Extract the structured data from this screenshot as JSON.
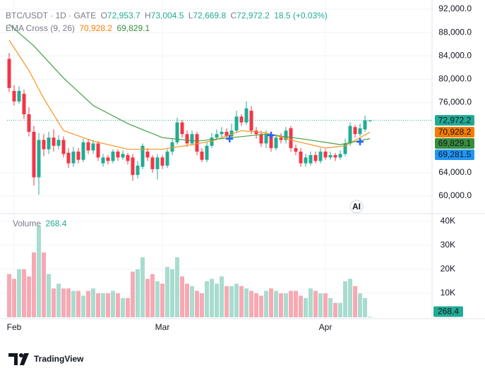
{
  "chart_data": {
    "type": "candlestick",
    "header": {
      "symbol": "BTC/USDT · 1D · GATE",
      "ohlc": [
        {
          "key": "O",
          "value": "72,953.7"
        },
        {
          "key": "H",
          "value": "73,004.5"
        },
        {
          "key": "L",
          "value": "72,669.8"
        },
        {
          "key": "C",
          "value": "72,972.2"
        }
      ],
      "change": "18.5 (+0.03%)"
    },
    "up_color": "#22ab94",
    "down_color": "#f23645",
    "open": [
      83500,
      78000,
      76200,
      77500,
      74000,
      71000,
      63200,
      69600,
      68000,
      70000,
      68600,
      69600,
      67400,
      65600,
      67600,
      66200,
      69200,
      67800,
      69000,
      65600,
      66600,
      66000,
      67600,
      66600,
      67000,
      66600,
      63600,
      65000,
      67600,
      66600,
      64600,
      66600,
      65200,
      67600,
      69200,
      72600,
      70600,
      69000,
      70600,
      67600,
      66200,
      68600,
      70000,
      70600,
      71000,
      70200,
      71200,
      73600,
      72600,
      74600,
      71200,
      70600,
      69000,
      70600,
      68200,
      70000,
      69600,
      71600,
      68200,
      67600,
      65600,
      65600,
      67000,
      66000,
      67600,
      66600,
      67000,
      66600,
      67200,
      69000,
      71800,
      70600,
      71400,
      72953.7
    ],
    "high": [
      84500,
      79000,
      78800,
      78200,
      75200,
      72000,
      70800,
      70600,
      71000,
      71400,
      70400,
      70200,
      68200,
      68400,
      68200,
      69800,
      69800,
      69600,
      69400,
      67200,
      67000,
      68000,
      68000,
      67800,
      67400,
      67200,
      66000,
      69000,
      68200,
      67000,
      67200,
      67000,
      68000,
      69800,
      73400,
      73000,
      71200,
      71200,
      71000,
      68200,
      69200,
      70800,
      71400,
      71800,
      71600,
      72400,
      74600,
      74000,
      76200,
      75400,
      71800,
      71200,
      71200,
      71000,
      70600,
      70800,
      71800,
      72000,
      68800,
      68200,
      67200,
      67600,
      67600,
      68200,
      68000,
      67600,
      67400,
      67800,
      69800,
      72600,
      72200,
      72400,
      73800,
      73004.5
    ],
    "low": [
      77800,
      75500,
      75800,
      73200,
      70200,
      61800,
      60200,
      66800,
      67200,
      67600,
      68000,
      66600,
      64800,
      65000,
      65600,
      65800,
      67200,
      67200,
      66000,
      65000,
      65400,
      65600,
      66000,
      66200,
      65400,
      62600,
      63000,
      64600,
      66000,
      64000,
      62800,
      64600,
      64800,
      67000,
      68800,
      70000,
      68400,
      68600,
      67000,
      65800,
      65800,
      68200,
      69600,
      70000,
      69600,
      69800,
      70800,
      72000,
      72200,
      70600,
      69800,
      68400,
      68200,
      67600,
      67800,
      69000,
      69000,
      67600,
      67000,
      65000,
      65000,
      65200,
      65600,
      65600,
      66200,
      66200,
      66000,
      66200,
      66800,
      68600,
      70000,
      70200,
      71000,
      72669.8
    ],
    "close": [
      78500,
      76200,
      78000,
      74000,
      71000,
      63200,
      69600,
      68000,
      70000,
      68600,
      69600,
      67200,
      65600,
      67600,
      66200,
      69200,
      67800,
      69000,
      66600,
      66600,
      66000,
      67600,
      66600,
      67200,
      66000,
      63600,
      65200,
      68600,
      66600,
      64600,
      66600,
      65200,
      67600,
      69200,
      72600,
      70600,
      69000,
      70600,
      67600,
      66200,
      68600,
      70000,
      70600,
      71000,
      70200,
      71200,
      73600,
      72600,
      75000,
      71200,
      70600,
      69000,
      70600,
      68200,
      70000,
      69600,
      71200,
      68200,
      67600,
      65600,
      66600,
      67000,
      66000,
      67600,
      66600,
      67000,
      66600,
      67200,
      69000,
      72000,
      70600,
      71600,
      72953.7,
      72972.2
    ],
    "volume": [
      18000,
      16000,
      20000,
      20000,
      17000,
      27000,
      38000,
      27000,
      18000,
      12000,
      14000,
      12000,
      12000,
      11000,
      11000,
      9000,
      11000,
      12000,
      10000,
      10000,
      10000,
      11000,
      10000,
      8000,
      8000,
      19000,
      20000,
      25000,
      16000,
      18000,
      15000,
      14000,
      21000,
      20000,
      25000,
      17000,
      14000,
      13000,
      11000,
      10000,
      15000,
      16000,
      14000,
      17000,
      13000,
      13000,
      14000,
      13000,
      12000,
      11000,
      10000,
      9000,
      11000,
      12000,
      11000,
      10000,
      10000,
      11000,
      11000,
      9000,
      8000,
      12000,
      11000,
      10000,
      10000,
      8000,
      6000,
      6000,
      15000,
      16000,
      13000,
      10000,
      8000,
      268.4
    ],
    "volume_up_color": "#a8dccf",
    "volume_down_color": "#f7a9b3",
    "xticks": [
      {
        "value": 1,
        "label": "Feb"
      },
      {
        "value": 31,
        "label": "Mar"
      },
      {
        "value": 64,
        "label": "Apr"
      }
    ],
    "ylim": [
      57100,
      92970
    ],
    "yticks": [
      {
        "value": 92000,
        "label": "92,000.0"
      },
      {
        "value": 88000,
        "label": "88,000.0"
      },
      {
        "value": 84000,
        "label": "84,000.0"
      },
      {
        "value": 80000,
        "label": "80,000.0"
      },
      {
        "value": 76000,
        "label": "76,000.0"
      },
      {
        "value": 64000,
        "label": "64,000.0"
      },
      {
        "value": 60000,
        "label": "60,000.0"
      }
    ],
    "volume_ylim": [
      0,
      42600
    ],
    "volume_yticks": [
      {
        "value": 40000,
        "label": "40K"
      },
      {
        "value": 30000,
        "label": "30K"
      },
      {
        "value": 20000,
        "label": "20K"
      },
      {
        "value": 10000,
        "label": "10K"
      }
    ],
    "volume_title": "Volume",
    "volume_label": "268.4",
    "indicator": "EMA Cross (9, 26)",
    "series": [
      {
        "color": "#f7931a",
        "legend_value": "70,928.2",
        "x": [
          0,
          4,
          7,
          11,
          17,
          24,
          31,
          37,
          41,
          47,
          52,
          58,
          64,
          68,
          73
        ],
        "values": [
          86700,
          81500,
          76700,
          71200,
          69400,
          68000,
          68000,
          68800,
          69400,
          71200,
          70800,
          69400,
          68200,
          68600,
          70928.2
        ]
      },
      {
        "color": "#43a047",
        "legend_value": "69,829.1",
        "x": [
          0,
          5,
          11,
          17,
          24,
          31,
          38,
          45,
          52,
          60,
          67,
          73
        ],
        "values": [
          89400,
          85700,
          80200,
          75500,
          72400,
          70000,
          69400,
          70000,
          70600,
          69700,
          68800,
          69829.1
        ]
      }
    ],
    "crosses": {
      "color": "#2962ff",
      "x": [
        44.6,
        53,
        71
      ],
      "values": [
        69800,
        70400,
        69281.5
      ]
    },
    "price_badges": [
      {
        "value": 72972.2,
        "label": "72,972.2",
        "color": "#22ab94"
      },
      {
        "value": 70928.2,
        "label": "70,928.2",
        "color": "#f57c00"
      },
      {
        "value": 69829.1,
        "label": "69,829.1",
        "color": "#388e3c"
      },
      {
        "value": 69281.5,
        "label": "69,281.5",
        "color": "#2196f3"
      }
    ],
    "last_price_line": 72972.2,
    "ai_button": "AI",
    "grid": true,
    "footer": {
      "brand": "TradingView"
    }
  }
}
